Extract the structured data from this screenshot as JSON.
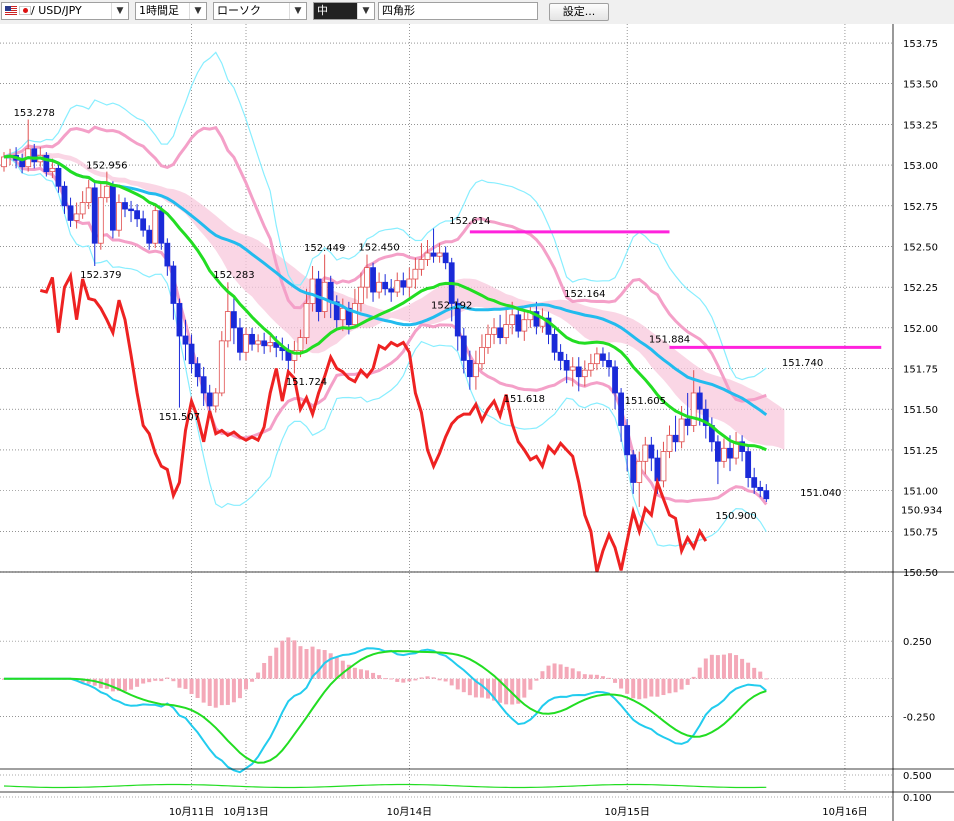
{
  "toolbar": {
    "symbol": "/ USD/JPY",
    "timeframe": "1時間足",
    "chart_style": "ローソク",
    "drawing_tool": "中",
    "drawing_shape": "四角形",
    "settings_label": "設定..."
  },
  "colors": {
    "up_body": "#ffffff",
    "down_body": "#1a2ad8",
    "candle_up_border": "#e05050",
    "ma_red": "#ee2222",
    "ma_green": "#22dd22",
    "ma_cyan": "#22bbee",
    "bb_pink": "#f4a0c8",
    "bb_cyan": "#88eeff",
    "cloud": "#f8c8dc",
    "hline": "#ff22dd",
    "macd_hist": "#f4a8b8"
  },
  "chart_data": {
    "type": "candlestick",
    "price_axis_ticks": [
      "153.75",
      "153.50",
      "153.25",
      "153.00",
      "152.75",
      "152.50",
      "152.25",
      "152.00",
      "151.75",
      "151.50",
      "151.25",
      "151.00",
      "150.75",
      "150.50"
    ],
    "price_range": [
      150.5,
      153.83
    ],
    "current_price": "150.934",
    "date_labels": [
      {
        "label": "10月11日",
        "at_hour": 31
      },
      {
        "label": "10月13日",
        "at_hour": 40
      },
      {
        "label": "10月14日",
        "at_hour": 67
      },
      {
        "label": "10月15日",
        "at_hour": 103
      },
      {
        "label": "10月16日",
        "at_hour": 139
      }
    ],
    "annotations": [
      {
        "text": "153.278",
        "hour": 5,
        "price": 153.278,
        "pos": "above"
      },
      {
        "text": "152.956",
        "hour": 17,
        "price": 152.956,
        "pos": "above"
      },
      {
        "text": "152.379",
        "hour": 16,
        "price": 152.379,
        "pos": "below"
      },
      {
        "text": "151.507",
        "hour": 29,
        "price": 151.507,
        "pos": "below"
      },
      {
        "text": "152.283",
        "hour": 38,
        "price": 152.283,
        "pos": "above"
      },
      {
        "text": "151.724",
        "hour": 50,
        "price": 151.724,
        "pos": "below"
      },
      {
        "text": "152.449",
        "hour": 53,
        "price": 152.449,
        "pos": "above"
      },
      {
        "text": "152.450",
        "hour": 62,
        "price": 152.45,
        "pos": "above"
      },
      {
        "text": "152.192",
        "hour": 74,
        "price": 152.192,
        "pos": "below"
      },
      {
        "text": "152.614",
        "hour": 77,
        "price": 152.614,
        "pos": "above"
      },
      {
        "text": "151.618",
        "hour": 86,
        "price": 151.618,
        "pos": "below"
      },
      {
        "text": "152.164",
        "hour": 96,
        "price": 152.164,
        "pos": "above"
      },
      {
        "text": "151.605",
        "hour": 106,
        "price": 151.605,
        "pos": "below"
      },
      {
        "text": "151.884",
        "hour": 110,
        "price": 151.884,
        "pos": "above"
      },
      {
        "text": "150.900",
        "hour": 121,
        "price": 150.9,
        "pos": "below"
      },
      {
        "text": "151.740",
        "hour": 132,
        "price": 151.74,
        "pos": "above"
      },
      {
        "text": "151.040",
        "hour": 135,
        "price": 151.04,
        "pos": "below"
      }
    ],
    "horizontal_lines": [
      {
        "price": 152.59,
        "from_hour": 77,
        "to_hour": 110
      },
      {
        "price": 151.88,
        "from_hour": 110,
        "to_hour": 145
      }
    ],
    "candles": [
      [
        152.99,
        153.05,
        153.08,
        152.96
      ],
      [
        153.05,
        153.06,
        153.1,
        153.0
      ],
      [
        153.06,
        153.03,
        153.11,
        152.98
      ],
      [
        153.03,
        152.99,
        153.07,
        152.95
      ],
      [
        152.99,
        153.1,
        153.28,
        152.96
      ],
      [
        153.1,
        153.02,
        153.13,
        152.98
      ],
      [
        153.02,
        153.06,
        153.11,
        152.99
      ],
      [
        153.06,
        152.96,
        153.08,
        152.93
      ],
      [
        152.96,
        152.98,
        153.04,
        152.92
      ],
      [
        152.98,
        152.87,
        153.02,
        152.83
      ],
      [
        152.87,
        152.75,
        152.9,
        152.7
      ],
      [
        152.75,
        152.66,
        152.8,
        152.62
      ],
      [
        152.66,
        152.7,
        152.77,
        152.61
      ],
      [
        152.7,
        152.77,
        152.84,
        152.67
      ],
      [
        152.77,
        152.86,
        152.91,
        152.73
      ],
      [
        152.86,
        152.52,
        152.9,
        152.38
      ],
      [
        152.52,
        152.8,
        152.89,
        152.48
      ],
      [
        152.8,
        152.87,
        152.96,
        152.77
      ],
      [
        152.87,
        152.6,
        152.9,
        152.55
      ],
      [
        152.6,
        152.77,
        152.82,
        152.56
      ],
      [
        152.77,
        152.73,
        152.8,
        152.68
      ],
      [
        152.73,
        152.72,
        152.78,
        152.65
      ],
      [
        152.72,
        152.67,
        152.76,
        152.62
      ],
      [
        152.67,
        152.6,
        152.72,
        152.56
      ],
      [
        152.6,
        152.52,
        152.63,
        152.48
      ],
      [
        152.52,
        152.72,
        152.75,
        152.49
      ],
      [
        152.72,
        152.52,
        152.75,
        152.48
      ],
      [
        152.52,
        152.38,
        152.55,
        152.32
      ],
      [
        152.38,
        152.15,
        152.41,
        152.05
      ],
      [
        152.15,
        151.95,
        152.18,
        151.51
      ],
      [
        151.95,
        151.9,
        152.05,
        151.8
      ],
      [
        151.9,
        151.78,
        151.96,
        151.72
      ],
      [
        151.78,
        151.7,
        151.82,
        151.64
      ],
      [
        151.7,
        151.6,
        151.76,
        151.52
      ],
      [
        151.6,
        151.52,
        151.65,
        151.48
      ],
      [
        151.52,
        151.6,
        151.63,
        151.48
      ],
      [
        151.6,
        151.92,
        151.98,
        151.58
      ],
      [
        151.92,
        152.1,
        152.28,
        151.88
      ],
      [
        152.1,
        152.0,
        152.2,
        151.9
      ],
      [
        152.0,
        151.85,
        152.06,
        151.8
      ],
      [
        151.85,
        151.96,
        152.0,
        151.8
      ],
      [
        151.96,
        151.9,
        152.0,
        151.86
      ],
      [
        151.9,
        151.92,
        151.96,
        151.85
      ],
      [
        151.92,
        151.89,
        151.97,
        151.84
      ],
      [
        151.89,
        151.91,
        151.95,
        151.85
      ],
      [
        151.91,
        151.88,
        151.95,
        151.82
      ],
      [
        151.88,
        151.86,
        151.94,
        151.8
      ],
      [
        151.86,
        151.8,
        151.9,
        151.74
      ],
      [
        151.8,
        151.86,
        151.92,
        151.72
      ],
      [
        151.86,
        151.94,
        151.99,
        151.82
      ],
      [
        151.94,
        152.15,
        152.24,
        151.9
      ],
      [
        152.15,
        152.3,
        152.38,
        152.1
      ],
      [
        152.3,
        152.1,
        152.35,
        152.04
      ],
      [
        152.1,
        152.28,
        152.45,
        152.06
      ],
      [
        152.28,
        152.16,
        152.32,
        152.06
      ],
      [
        152.16,
        152.05,
        152.2,
        152.0
      ],
      [
        152.05,
        152.12,
        152.18,
        151.98
      ],
      [
        152.12,
        152.02,
        152.16,
        151.96
      ],
      [
        152.02,
        152.15,
        152.24,
        152.0
      ],
      [
        152.15,
        152.25,
        152.34,
        152.1
      ],
      [
        152.25,
        152.37,
        152.45,
        152.18
      ],
      [
        152.37,
        152.22,
        152.4,
        152.16
      ],
      [
        152.22,
        152.28,
        152.34,
        152.18
      ],
      [
        152.28,
        152.24,
        152.33,
        152.2
      ],
      [
        152.24,
        152.22,
        152.3,
        152.16
      ],
      [
        152.22,
        152.29,
        152.34,
        152.19
      ],
      [
        152.29,
        152.25,
        152.34,
        152.2
      ],
      [
        152.25,
        152.3,
        152.37,
        152.19
      ],
      [
        152.3,
        152.36,
        152.43,
        152.24
      ],
      [
        152.36,
        152.42,
        152.52,
        152.32
      ],
      [
        152.42,
        152.46,
        152.54,
        152.38
      ],
      [
        152.46,
        152.44,
        152.61,
        152.4
      ],
      [
        152.44,
        152.46,
        152.52,
        152.4
      ],
      [
        152.46,
        152.4,
        152.5,
        152.36
      ],
      [
        152.4,
        152.15,
        152.43,
        152.04
      ],
      [
        152.15,
        151.95,
        152.18,
        151.86
      ],
      [
        151.95,
        151.8,
        152.0,
        151.72
      ],
      [
        151.8,
        151.7,
        151.86,
        151.62
      ],
      [
        151.7,
        151.78,
        151.86,
        151.62
      ],
      [
        151.78,
        151.88,
        151.96,
        151.74
      ],
      [
        151.88,
        151.96,
        152.02,
        151.84
      ],
      [
        151.96,
        152.0,
        152.06,
        151.9
      ],
      [
        152.0,
        151.94,
        152.08,
        151.9
      ],
      [
        151.94,
        152.02,
        152.12,
        151.9
      ],
      [
        152.02,
        152.08,
        152.16,
        151.96
      ],
      [
        152.08,
        151.98,
        152.12,
        151.94
      ],
      [
        151.98,
        152.05,
        152.1,
        151.92
      ],
      [
        152.05,
        152.1,
        152.14,
        152.0
      ],
      [
        152.1,
        152.01,
        152.16,
        151.96
      ],
      [
        152.01,
        152.06,
        152.12,
        151.97
      ],
      [
        152.06,
        151.96,
        152.1,
        151.9
      ],
      [
        151.96,
        151.85,
        152.0,
        151.8
      ],
      [
        151.85,
        151.8,
        151.9,
        151.74
      ],
      [
        151.8,
        151.74,
        151.84,
        151.66
      ],
      [
        151.74,
        151.76,
        151.82,
        151.64
      ],
      [
        151.76,
        151.7,
        151.82,
        151.61
      ],
      [
        151.7,
        151.74,
        151.8,
        151.64
      ],
      [
        151.74,
        151.78,
        151.84,
        151.7
      ],
      [
        151.78,
        151.84,
        151.88,
        151.74
      ],
      [
        151.84,
        151.8,
        151.88,
        151.76
      ],
      [
        151.8,
        151.76,
        151.85,
        151.7
      ],
      [
        151.76,
        151.6,
        151.8,
        151.5
      ],
      [
        151.6,
        151.4,
        151.63,
        151.3
      ],
      [
        151.4,
        151.22,
        151.44,
        151.12
      ],
      [
        151.22,
        151.05,
        151.25,
        150.98
      ],
      [
        151.05,
        151.18,
        151.24,
        150.9
      ],
      [
        151.18,
        151.28,
        151.33,
        151.1
      ],
      [
        151.28,
        151.2,
        151.33,
        151.12
      ],
      [
        151.2,
        151.06,
        151.25,
        150.98
      ],
      [
        151.06,
        151.24,
        151.3,
        151.02
      ],
      [
        151.24,
        151.34,
        151.4,
        151.2
      ],
      [
        151.34,
        151.3,
        151.46,
        151.24
      ],
      [
        151.3,
        151.44,
        151.52,
        151.26
      ],
      [
        151.44,
        151.4,
        151.6,
        151.34
      ],
      [
        151.4,
        151.6,
        151.74,
        151.36
      ],
      [
        151.6,
        151.5,
        151.64,
        151.4
      ],
      [
        151.5,
        151.4,
        151.56,
        151.32
      ],
      [
        151.4,
        151.3,
        151.45,
        151.24
      ],
      [
        151.3,
        151.18,
        151.34,
        151.04
      ],
      [
        151.18,
        151.26,
        151.32,
        151.14
      ],
      [
        151.26,
        151.2,
        151.34,
        151.12
      ],
      [
        151.2,
        151.3,
        151.36,
        151.16
      ],
      [
        151.3,
        151.24,
        151.34,
        151.18
      ],
      [
        151.24,
        151.08,
        151.28,
        151.02
      ],
      [
        151.08,
        151.02,
        151.14,
        150.98
      ],
      [
        151.02,
        151.0,
        151.06,
        150.96
      ],
      [
        151.0,
        150.95,
        151.04,
        150.93
      ]
    ],
    "macd": {
      "axis_ticks": [
        "0.250",
        "-0.250"
      ],
      "range": [
        -0.58,
        0.55
      ]
    },
    "sub2_ticks": [
      "0.500",
      "0.100"
    ]
  }
}
